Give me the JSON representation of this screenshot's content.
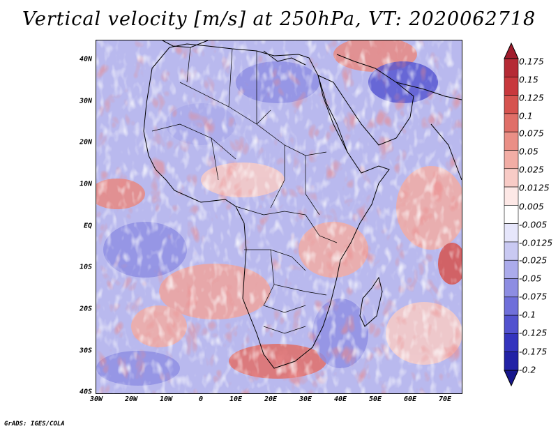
{
  "title": "Vertical velocity [m/s] at 250hPa, VT: 2020062718",
  "credit": "GrADS: IGES/COLA",
  "lat_labels": [
    "40N",
    "30N",
    "20N",
    "10N",
    "EQ",
    "10S",
    "20S",
    "30S",
    "40S"
  ],
  "lon_labels": [
    "30W",
    "20W",
    "10W",
    "0",
    "10E",
    "20E",
    "30E",
    "40E",
    "50E",
    "60E",
    "70E"
  ],
  "colorbar": {
    "labels": [
      "0.175",
      "0.15",
      "0.125",
      "0.1",
      "0.075",
      "0.05",
      "0.025",
      "0.0125",
      "0.005",
      "-0.005",
      "-0.0125",
      "-0.025",
      "-0.05",
      "-0.075",
      "-0.1",
      "-0.125",
      "-0.175",
      "-0.2"
    ],
    "colors": [
      "#a01c2c",
      "#b52a35",
      "#c8383d",
      "#d6534f",
      "#e06f68",
      "#ea8f86",
      "#f2ada5",
      "#f8cbc6",
      "#fde8e6",
      "#ffffff",
      "#e6e6fb",
      "#c9c9f2",
      "#ababeb",
      "#8d8de2",
      "#6f6fda",
      "#5252cf",
      "#3434be",
      "#2222a6",
      "#16168c"
    ]
  }
}
